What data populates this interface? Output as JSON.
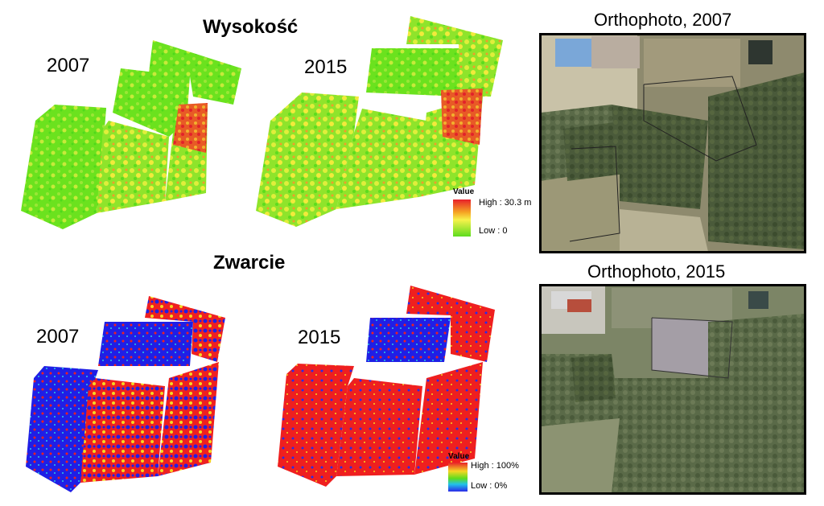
{
  "top_section": {
    "title": "Wysokość",
    "years": [
      "2007",
      "2015"
    ],
    "legend": {
      "title": "Value",
      "high": "High : 30.3 m",
      "low": "Low : 0",
      "colors": [
        "#e8202a",
        "#f5a623",
        "#f7f24b",
        "#b5e23b",
        "#5ddc1e"
      ]
    }
  },
  "bottom_section": {
    "title": "Zwarcie",
    "years": [
      "2007",
      "2015"
    ],
    "legend": {
      "title": "Value",
      "high": "High : 100%",
      "low": "Low : 0%",
      "colors": [
        "#e8202a",
        "#f5d623",
        "#5ddc1e",
        "#22c3e8",
        "#2a2ae8"
      ]
    }
  },
  "orthophotos": [
    {
      "title": "Orthophoto, 2007"
    },
    {
      "title": "Orthophoto, 2015"
    }
  ],
  "colors": {
    "height_green": "#62e01f",
    "height_yellow": "#e7ef3a",
    "height_red": "#e8452a",
    "density_blue": "#1f1fe6",
    "density_red": "#ef1f1f"
  }
}
